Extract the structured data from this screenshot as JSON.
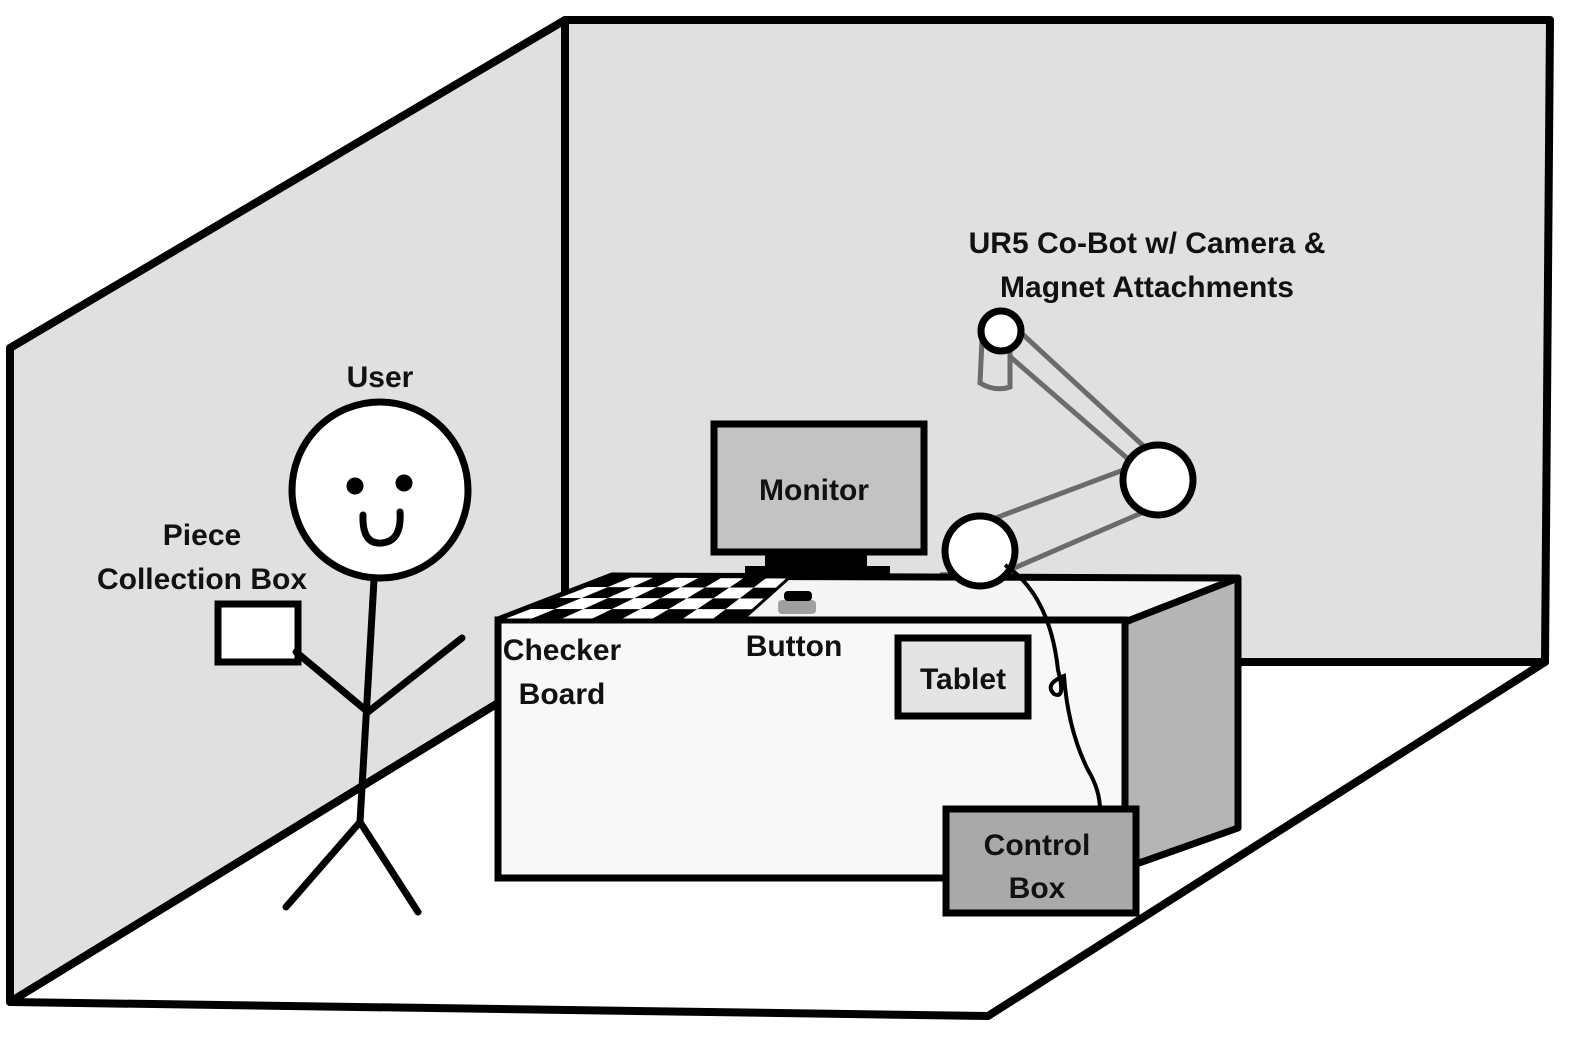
{
  "labels": {
    "user": "User",
    "piece_box_line1": "Piece",
    "piece_box_line2": "Collection Box",
    "monitor": "Monitor",
    "robot_line1": "UR5 Co-Bot w/ Camera &",
    "robot_line2": "Magnet Attachments",
    "checker_line1": "Checker",
    "checker_line2": "Board",
    "button": "Button",
    "tablet": "Tablet",
    "control_line1": "Control",
    "control_line2": "Box"
  },
  "colors": {
    "wall": "#e0e0e0",
    "floor": "#ffffff",
    "outline": "#000000",
    "monitor_screen": "#c3c3c3",
    "robot_arm": "#6b6b6b",
    "robot_base": "#777777",
    "desk_side": "#b5b5b5",
    "control_box": "#a9a9a9",
    "tablet_screen": "#e4e4e4",
    "button": "#a0a0a0"
  }
}
